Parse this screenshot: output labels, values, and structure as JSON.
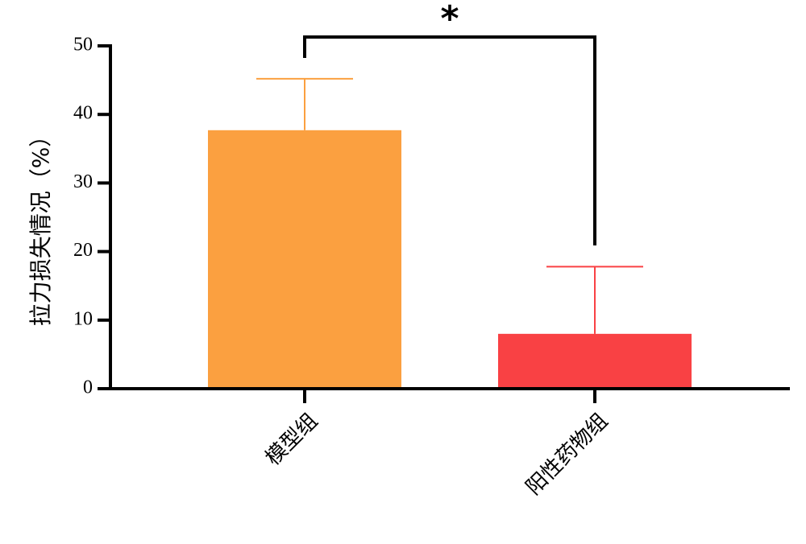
{
  "chart_data": {
    "type": "bar",
    "y_label": "拉力损失情况（%）",
    "categories": [
      "模型组",
      "阳性药物组"
    ],
    "values": [
      37.7,
      8.0
    ],
    "errors": [
      7.5,
      9.8
    ],
    "colors": [
      "#fba040",
      "#f94144"
    ],
    "ylim": [
      0,
      50
    ],
    "yticks": [
      0,
      10,
      20,
      30,
      40,
      50
    ],
    "annotation": "*"
  }
}
